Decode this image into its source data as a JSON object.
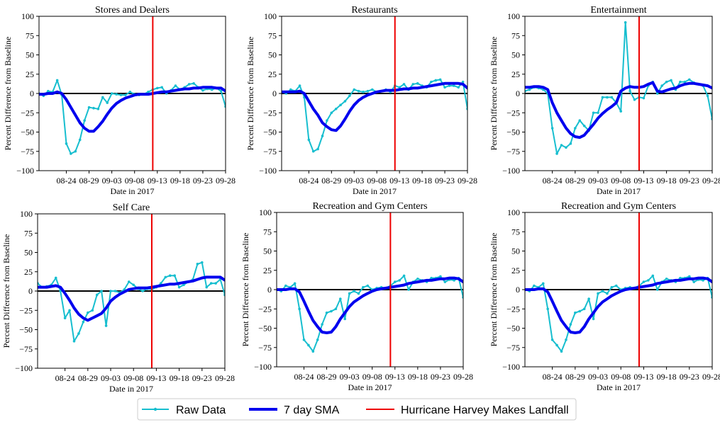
{
  "colors": {
    "raw": "#17becf",
    "sma": "#0000ee",
    "landfall": "#ee0000",
    "zero_line": "#000000"
  },
  "legend": {
    "raw_label": "Raw Data",
    "sma_label": "7 day SMA",
    "landfall_label": "Hurricane Harvey Makes Landfall"
  },
  "chart_data": [
    {
      "type": "line",
      "title": "Stores and Dealers",
      "xlabel": "Date in 2017",
      "ylabel": "Percent Difference from Baseline",
      "ylim": [
        -100,
        100
      ],
      "yticks": [
        "100",
        "75",
        "50",
        "25",
        "0",
        "−25",
        "−50",
        "−75",
        "−100"
      ],
      "xticks": [
        "08-24",
        "08-29",
        "09-03",
        "09-08",
        "09-13",
        "09-18",
        "09-23",
        "09-28"
      ],
      "landfall_day": 25,
      "raw": [
        0,
        -3,
        3,
        2,
        17,
        -2,
        -65,
        -78,
        -75,
        -60,
        -35,
        -18,
        -19,
        -20,
        -5,
        -12,
        0,
        -1,
        -2,
        -2,
        2,
        -1,
        -2,
        -1,
        2,
        5,
        7,
        8,
        0,
        4,
        10,
        5,
        8,
        12,
        13,
        8,
        4,
        6,
        5,
        7,
        3,
        -17
      ],
      "sma": [
        -1,
        -1,
        0,
        0,
        2,
        0,
        -8,
        -18,
        -28,
        -38,
        -45,
        -49,
        -49,
        -43,
        -36,
        -27,
        -19,
        -13,
        -9,
        -6,
        -4,
        -2,
        -1,
        -1,
        -1,
        0,
        1,
        2,
        2,
        3,
        4,
        5,
        6,
        6,
        7,
        7,
        8,
        8,
        8,
        7,
        7,
        3
      ]
    },
    {
      "type": "line",
      "title": "Restaurants",
      "xlabel": "Date in 2017",
      "ylabel": "Percent Difference from Baseline",
      "ylim": [
        -100,
        100
      ],
      "yticks": [
        "100",
        "75",
        "50",
        "25",
        "0",
        "−25",
        "−50",
        "−75",
        "−100"
      ],
      "xticks": [
        "08-24",
        "08-29",
        "09-03",
        "09-08",
        "09-13",
        "09-18",
        "09-23",
        "09-28"
      ],
      "landfall_day": 25,
      "raw": [
        2,
        0,
        5,
        3,
        10,
        -5,
        -60,
        -75,
        -72,
        -55,
        -35,
        -25,
        -20,
        -15,
        -10,
        -3,
        5,
        3,
        2,
        3,
        5,
        2,
        3,
        5,
        2,
        10,
        8,
        12,
        5,
        12,
        13,
        10,
        8,
        15,
        17,
        18,
        8,
        10,
        10,
        8,
        15,
        -20
      ],
      "sma": [
        2,
        2,
        2,
        2,
        3,
        0,
        -10,
        -20,
        -28,
        -38,
        -43,
        -47,
        -48,
        -42,
        -33,
        -23,
        -15,
        -9,
        -5,
        -2,
        0,
        2,
        3,
        4,
        4,
        4,
        5,
        6,
        6,
        7,
        7,
        8,
        9,
        10,
        11,
        12,
        13,
        13,
        13,
        13,
        12,
        7
      ]
    },
    {
      "type": "line",
      "title": "Entertainment",
      "xlabel": "Date in 2017",
      "ylabel": "Percent Difference from Baseline",
      "ylim": [
        -100,
        100
      ],
      "yticks": [
        "100",
        "75",
        "50",
        "25",
        "0",
        "−25",
        "−50",
        "−75",
        "−100"
      ],
      "xticks": [
        "08-24",
        "08-29",
        "09-03",
        "09-08",
        "09-13",
        "09-18",
        "09-23",
        "09-28"
      ],
      "landfall_day": 25,
      "raw": [
        3,
        5,
        8,
        7,
        5,
        0,
        -45,
        -78,
        -67,
        -70,
        -65,
        -45,
        -35,
        -42,
        -48,
        -25,
        -25,
        -5,
        -5,
        -5,
        -12,
        -23,
        92,
        3,
        -8,
        -5,
        -6,
        10,
        15,
        0,
        10,
        15,
        17,
        5,
        15,
        15,
        18,
        14,
        12,
        10,
        -3,
        -33
      ],
      "sma": [
        8,
        8,
        9,
        9,
        8,
        5,
        -12,
        -25,
        -35,
        -45,
        -52,
        -56,
        -57,
        -54,
        -47,
        -40,
        -32,
        -26,
        -21,
        -17,
        -12,
        3,
        7,
        9,
        8,
        8,
        9,
        12,
        14,
        3,
        2,
        4,
        6,
        7,
        10,
        12,
        13,
        13,
        12,
        11,
        10,
        7
      ]
    },
    {
      "type": "line",
      "title": "Self Care",
      "xlabel": "Date in 2017",
      "ylabel": "Percent Difference from Baseline",
      "ylim": [
        -100,
        100
      ],
      "yticks": [
        "100",
        "75",
        "50",
        "25",
        "0",
        "−25",
        "−50",
        "−75",
        "−100"
      ],
      "xticks": [
        "08-24",
        "08-29",
        "09-03",
        "09-08",
        "09-13",
        "09-18",
        "09-23",
        "09-28"
      ],
      "landfall_day": 25,
      "raw": [
        10,
        5,
        6,
        8,
        17,
        0,
        -35,
        -25,
        -65,
        -55,
        -40,
        -28,
        -25,
        -5,
        0,
        -45,
        0,
        0,
        -2,
        2,
        12,
        8,
        3,
        0,
        3,
        2,
        5,
        10,
        18,
        20,
        20,
        5,
        8,
        12,
        15,
        35,
        37,
        5,
        10,
        10,
        15,
        -5
      ],
      "sma": [
        5,
        5,
        5,
        6,
        7,
        5,
        -3,
        -12,
        -22,
        -30,
        -35,
        -38,
        -35,
        -32,
        -29,
        -22,
        -13,
        -8,
        -4,
        -1,
        2,
        3,
        4,
        4,
        4,
        5,
        6,
        7,
        8,
        9,
        9,
        10,
        11,
        12,
        13,
        15,
        17,
        18,
        18,
        18,
        18,
        14
      ]
    },
    {
      "type": "line",
      "title": "Recreation and Gym Centers",
      "xlabel": "Date in 2017",
      "ylabel": "Percent Difference from Baseline",
      "ylim": [
        -100,
        100
      ],
      "yticks": [
        "100",
        "75",
        "50",
        "25",
        "0",
        "−25",
        "−50",
        "−75",
        "−100"
      ],
      "xticks": [
        "08-24",
        "08-29",
        "09-03",
        "09-08",
        "09-13",
        "09-18",
        "09-23",
        "09-28"
      ],
      "landfall_day": 25,
      "raw": [
        0,
        -2,
        5,
        3,
        8,
        -25,
        -65,
        -72,
        -80,
        -65,
        -45,
        -30,
        -28,
        -25,
        -12,
        -38,
        -5,
        -2,
        -5,
        3,
        5,
        0,
        2,
        3,
        2,
        5,
        10,
        12,
        18,
        0,
        10,
        14,
        12,
        10,
        15,
        15,
        17,
        10,
        13,
        12,
        15,
        -10
      ],
      "sma": [
        0,
        0,
        0,
        1,
        1,
        -3,
        -15,
        -28,
        -40,
        -48,
        -55,
        -56,
        -55,
        -48,
        -38,
        -30,
        -22,
        -16,
        -12,
        -8,
        -5,
        -2,
        0,
        1,
        2,
        3,
        4,
        5,
        6,
        8,
        9,
        10,
        11,
        12,
        12,
        13,
        14,
        14,
        15,
        15,
        14,
        10
      ]
    },
    {
      "type": "line",
      "title": "Recreation and Gym Centers",
      "xlabel": "Date in 2017",
      "ylabel": "Percent Difference from Baseline",
      "ylim": [
        -100,
        100
      ],
      "yticks": [
        "100",
        "75",
        "50",
        "25",
        "0",
        "−25",
        "−50",
        "−75",
        "−100"
      ],
      "xticks": [
        "08-24",
        "08-29",
        "09-03",
        "09-08",
        "09-13",
        "09-18",
        "09-23",
        "09-28"
      ],
      "landfall_day": 25,
      "raw": [
        0,
        -2,
        5,
        3,
        8,
        -25,
        -65,
        -72,
        -80,
        -65,
        -45,
        -30,
        -28,
        -25,
        -12,
        -38,
        -5,
        -2,
        -5,
        3,
        5,
        0,
        2,
        3,
        2,
        5,
        10,
        12,
        18,
        0,
        10,
        14,
        12,
        10,
        15,
        15,
        17,
        10,
        13,
        12,
        15,
        -10
      ],
      "sma": [
        0,
        0,
        0,
        1,
        1,
        -3,
        -15,
        -28,
        -40,
        -48,
        -55,
        -56,
        -55,
        -48,
        -38,
        -30,
        -22,
        -16,
        -12,
        -8,
        -5,
        -2,
        0,
        1,
        2,
        3,
        4,
        5,
        6,
        8,
        9,
        10,
        11,
        12,
        12,
        13,
        14,
        14,
        15,
        15,
        14,
        10
      ]
    }
  ]
}
